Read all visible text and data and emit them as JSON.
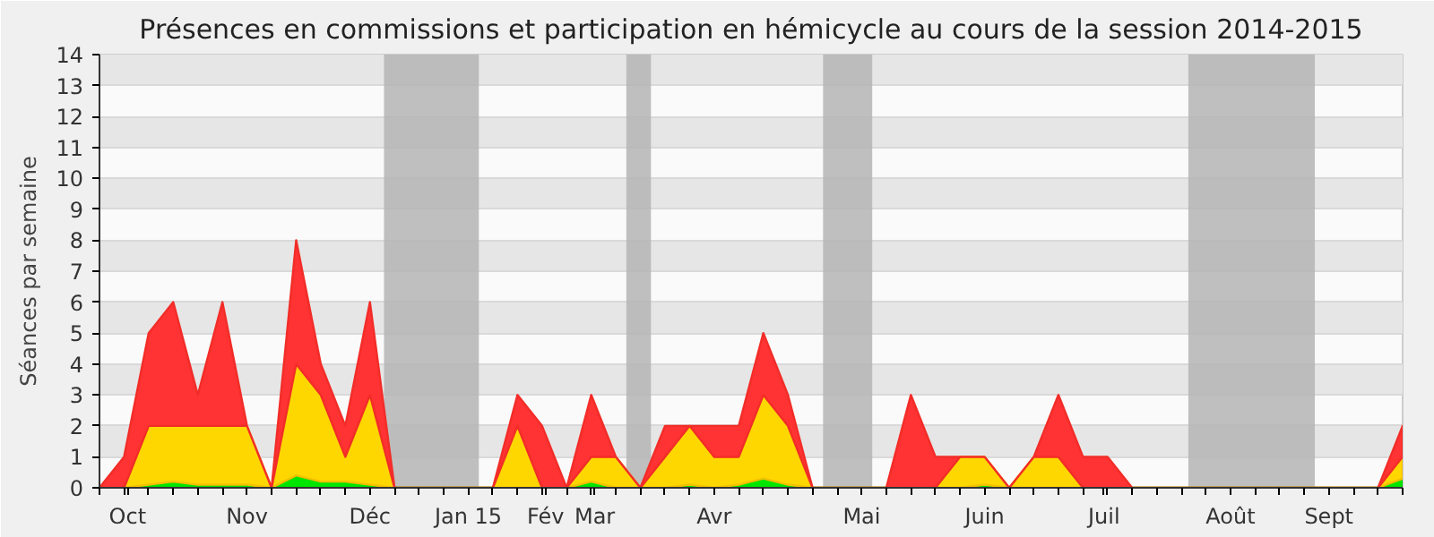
{
  "chart_data": {
    "type": "area",
    "stacked": true,
    "title": "Présences en commissions et participation en hémicycle au cours de la session 2014-2015",
    "ylabel": "Séances par semaine",
    "x": [
      "2014-10-12",
      "2014-10-19",
      "2014-10-26",
      "2014-11-02",
      "2014-11-09",
      "2014-11-16",
      "2014-11-23",
      "2014-11-30",
      "2014-12-07",
      "2014-12-14",
      "2014-12-21",
      "2014-12-28",
      "2015-01-04",
      "2015-01-11",
      "2015-01-18",
      "2015-01-25",
      "2015-02-01",
      "2015-02-08",
      "2015-02-15",
      "2015-02-22",
      "2015-03-01",
      "2015-03-08",
      "2015-03-15",
      "2015-03-22",
      "2015-03-29",
      "2015-04-05",
      "2015-04-12",
      "2015-04-19",
      "2015-04-26",
      "2015-05-03",
      "2015-05-10",
      "2015-05-17",
      "2015-05-24",
      "2015-05-31",
      "2015-06-07",
      "2015-06-14",
      "2015-06-21",
      "2015-06-28",
      "2015-07-05",
      "2015-07-12",
      "2015-07-19",
      "2015-07-26",
      "2015-08-02",
      "2015-08-09",
      "2015-08-16",
      "2015-08-23",
      "2015-08-30",
      "2015-09-06",
      "2015-09-13",
      "2015-09-20",
      "2015-09-27",
      "2015-10-04",
      "2015-10-11",
      "2015-10-18"
    ],
    "series": [
      {
        "color": "#00e600",
        "values": [
          0,
          0,
          0.1,
          0.2,
          0.1,
          0.1,
          0.1,
          0,
          0.4,
          0.2,
          0.2,
          0.1,
          0,
          0,
          0,
          0,
          0,
          0,
          0,
          0,
          0.2,
          0,
          0,
          0,
          0.1,
          0,
          0.1,
          0.3,
          0.1,
          0,
          0,
          0,
          0,
          0,
          0,
          0,
          0.1,
          0,
          0,
          0,
          0,
          0,
          0,
          0,
          0,
          0,
          0,
          0,
          0,
          0,
          0,
          0,
          0,
          0.3
        ]
      },
      {
        "color": "#ffd700",
        "values": [
          0,
          0,
          1.9,
          1.8,
          1.9,
          1.9,
          1.9,
          0,
          3.6,
          2.8,
          0.8,
          2.9,
          0,
          0,
          0,
          0,
          0,
          2,
          0,
          0,
          0.8,
          1,
          0,
          1,
          1.9,
          1,
          0.9,
          2.7,
          1.9,
          0,
          0,
          0,
          0,
          0,
          0,
          1,
          0.9,
          0,
          1,
          1,
          0,
          0,
          0,
          0,
          0,
          0,
          0,
          0,
          0,
          0,
          0,
          0,
          0,
          0.7
        ]
      },
      {
        "color": "#ff3333",
        "values": [
          0,
          1,
          3,
          4,
          1,
          4,
          0,
          0,
          4,
          1,
          1,
          3,
          0,
          0,
          0,
          0,
          0,
          1,
          2,
          0,
          2,
          0,
          0,
          1,
          0,
          1,
          1,
          2,
          1,
          0,
          0,
          0,
          0,
          3,
          1,
          0,
          0,
          0,
          0,
          2,
          1,
          1,
          0,
          0,
          0,
          0,
          0,
          0,
          0,
          0,
          0,
          0,
          0,
          1
        ]
      }
    ],
    "xlim": [
      "2014-10-12",
      "2015-10-18"
    ],
    "ylim": [
      0,
      14
    ],
    "yticks": [
      0,
      1,
      2,
      3,
      4,
      5,
      6,
      7,
      8,
      9,
      10,
      11,
      12,
      13,
      14
    ],
    "xticks": [
      {
        "value": "2014-10-12",
        "label": null
      },
      {
        "value": "2014-10-19",
        "label": null
      },
      {
        "value": "2014-10-20",
        "label": "Oct"
      },
      {
        "value": "2014-10-26",
        "label": null
      },
      {
        "value": "2014-11-02",
        "label": null
      },
      {
        "value": "2014-11-09",
        "label": null
      },
      {
        "value": "2014-11-16",
        "label": null
      },
      {
        "value": "2014-11-23",
        "label": "Nov"
      },
      {
        "value": "2014-11-30",
        "label": null
      },
      {
        "value": "2014-12-07",
        "label": null
      },
      {
        "value": "2014-12-14",
        "label": null
      },
      {
        "value": "2014-12-21",
        "label": null
      },
      {
        "value": "2014-12-28",
        "label": "Déc"
      },
      {
        "value": "2015-01-04",
        "label": null
      },
      {
        "value": "2015-01-11",
        "label": null
      },
      {
        "value": "2015-01-18",
        "label": null
      },
      {
        "value": "2015-01-25",
        "label": "Jan 15"
      },
      {
        "value": "2015-02-01",
        "label": null
      },
      {
        "value": "2015-02-08",
        "label": null
      },
      {
        "value": "2015-02-15",
        "label": null
      },
      {
        "value": "2015-02-16",
        "label": "Fév"
      },
      {
        "value": "2015-02-22",
        "label": null
      },
      {
        "value": "2015-03-01",
        "label": null
      },
      {
        "value": "2015-03-02",
        "label": "Mar"
      },
      {
        "value": "2015-03-08",
        "label": null
      },
      {
        "value": "2015-03-15",
        "label": null
      },
      {
        "value": "2015-03-22",
        "label": null
      },
      {
        "value": "2015-03-29",
        "label": null
      },
      {
        "value": "2015-04-05",
        "label": "Avr"
      },
      {
        "value": "2015-04-12",
        "label": null
      },
      {
        "value": "2015-04-19",
        "label": null
      },
      {
        "value": "2015-04-26",
        "label": null
      },
      {
        "value": "2015-05-03",
        "label": null
      },
      {
        "value": "2015-05-10",
        "label": null
      },
      {
        "value": "2015-05-17",
        "label": "Mai"
      },
      {
        "value": "2015-05-24",
        "label": null
      },
      {
        "value": "2015-05-31",
        "label": null
      },
      {
        "value": "2015-06-07",
        "label": null
      },
      {
        "value": "2015-06-14",
        "label": null
      },
      {
        "value": "2015-06-21",
        "label": "Juin"
      },
      {
        "value": "2015-06-28",
        "label": null
      },
      {
        "value": "2015-07-05",
        "label": null
      },
      {
        "value": "2015-07-12",
        "label": null
      },
      {
        "value": "2015-07-19",
        "label": null
      },
      {
        "value": "2015-07-25",
        "label": "Juil"
      },
      {
        "value": "2015-07-26",
        "label": null
      },
      {
        "value": "2015-08-02",
        "label": null
      },
      {
        "value": "2015-08-09",
        "label": null
      },
      {
        "value": "2015-08-16",
        "label": null
      },
      {
        "value": "2015-08-23",
        "label": null
      },
      {
        "value": "2015-08-30",
        "label": "Août"
      },
      {
        "value": "2015-09-06",
        "label": null
      },
      {
        "value": "2015-09-13",
        "label": null
      },
      {
        "value": "2015-09-20",
        "label": null
      },
      {
        "value": "2015-09-27",
        "label": "Sept"
      },
      {
        "value": "2015-10-04",
        "label": null
      },
      {
        "value": "2015-10-11",
        "label": null
      },
      {
        "value": "2015-10-18",
        "label": null
      }
    ],
    "bands": [
      {
        "axis": "x",
        "from": "2015-01-01",
        "to": "2015-01-28",
        "color": "#b4b4b4"
      },
      {
        "axis": "x",
        "from": "2015-03-11",
        "to": "2015-03-18",
        "color": "#b4b4b4"
      },
      {
        "axis": "x",
        "from": "2015-05-06",
        "to": "2015-05-20",
        "color": "#b4b4b4"
      },
      {
        "axis": "x",
        "from": "2015-08-18",
        "to": "2015-09-23",
        "color": "#b4b4b4"
      }
    ],
    "grid": "y"
  }
}
